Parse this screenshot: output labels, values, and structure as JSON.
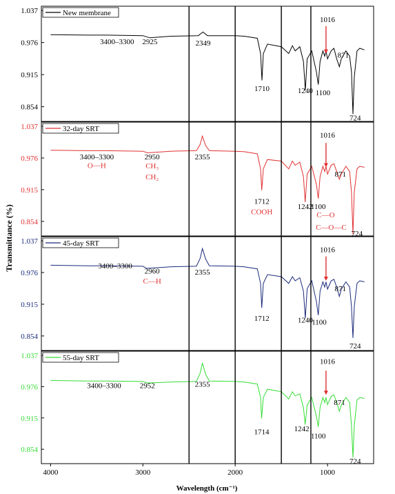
{
  "figure": {
    "ylabel": "Transmittance (%)",
    "xlabel": "Wavelength (cm⁻¹)",
    "xticks": [
      "4000",
      "3000",
      "2000",
      "1000"
    ]
  },
  "chart_data": [
    {
      "type": "line",
      "panel": 1,
      "color": "#000000",
      "series": [
        {
          "name": "New membrane",
          "x": [
            4000,
            3600,
            3400,
            3000,
            2925,
            2700,
            2400,
            2349,
            2300,
            2000,
            1900,
            1760,
            1725,
            1710,
            1695,
            1650,
            1500,
            1420,
            1380,
            1350,
            1300,
            1260,
            1240,
            1220,
            1170,
            1120,
            1100,
            1080,
            1050,
            1030,
            1016,
            1000,
            960,
            930,
            900,
            871,
            850,
            800,
            760,
            740,
            724,
            710,
            680,
            650,
            600
          ],
          "y": [
            0.991,
            0.99,
            0.99,
            0.989,
            0.985,
            0.988,
            0.989,
            0.996,
            0.989,
            0.989,
            0.988,
            0.984,
            0.955,
            0.904,
            0.955,
            0.973,
            0.968,
            0.955,
            0.97,
            0.96,
            0.968,
            0.94,
            0.885,
            0.945,
            0.96,
            0.92,
            0.896,
            0.94,
            0.96,
            0.95,
            0.96,
            0.945,
            0.96,
            0.965,
            0.945,
            0.93,
            0.945,
            0.96,
            0.95,
            0.92,
            0.84,
            0.91,
            0.96,
            0.965,
            0.962
          ]
        }
      ],
      "ylim": [
        0.826,
        1.045
      ],
      "yticks": [
        "1.037",
        "0.976",
        "0.915",
        "0.854"
      ],
      "tick_color": "#000000",
      "annotations": [
        {
          "text": "3400–3300",
          "x": 3280,
          "y": 0.973,
          "color": "#000000"
        },
        {
          "text": "2925",
          "x": 2925,
          "y": 0.973,
          "color": "#000000"
        },
        {
          "text": "2349",
          "x": 2349,
          "y": 0.97,
          "color": "#000000"
        },
        {
          "text": "1710",
          "x": 1710,
          "y": 0.884,
          "color": "#000000"
        },
        {
          "text": "1240",
          "x": 1240,
          "y": 0.88,
          "color": "#000000"
        },
        {
          "text": "1100",
          "x": 1050,
          "y": 0.876,
          "color": "#000000"
        },
        {
          "text": "1016",
          "x": 1000,
          "y": 1.015,
          "color": "#000000"
        },
        {
          "text": "871",
          "x": 830,
          "y": 0.947,
          "color": "#000000"
        },
        {
          "text": "724",
          "x": 700,
          "y": 0.828,
          "color": "#000000"
        }
      ],
      "arrow": {
        "x": 1016,
        "y_from": 1.007,
        "y_to": 0.955
      }
    },
    {
      "type": "line",
      "panel": 2,
      "color": "#e03030",
      "series": [
        {
          "name": "32-day SRT",
          "x": [
            4000,
            3600,
            3400,
            3000,
            2950,
            2700,
            2420,
            2380,
            2355,
            2320,
            2280,
            2000,
            1900,
            1760,
            1725,
            1712,
            1695,
            1650,
            1500,
            1420,
            1380,
            1350,
            1300,
            1260,
            1242,
            1220,
            1170,
            1120,
            1100,
            1080,
            1050,
            1030,
            1016,
            1000,
            960,
            930,
            900,
            871,
            850,
            800,
            760,
            740,
            724,
            710,
            680,
            650,
            600
          ],
          "y": [
            0.991,
            0.99,
            0.99,
            0.989,
            0.986,
            0.989,
            0.99,
            1.002,
            1.018,
            1.0,
            0.99,
            0.989,
            0.988,
            0.984,
            0.955,
            0.914,
            0.955,
            0.973,
            0.97,
            0.955,
            0.97,
            0.962,
            0.968,
            0.94,
            0.891,
            0.945,
            0.96,
            0.925,
            0.898,
            0.94,
            0.96,
            0.95,
            0.96,
            0.945,
            0.962,
            0.965,
            0.95,
            0.935,
            0.945,
            0.96,
            0.95,
            0.91,
            0.83,
            0.91,
            0.955,
            0.96,
            0.958
          ]
        }
      ],
      "ylim": [
        0.826,
        1.045
      ],
      "yticks": [
        "1.037",
        "0.976",
        "0.915",
        "0.854"
      ],
      "tick_color": "#e03030",
      "annotations": [
        {
          "text": "3400–3300",
          "x": 3500,
          "y": 0.973,
          "color": "#000000"
        },
        {
          "text": "O—H",
          "x": 3500,
          "y": 0.957,
          "color": "#e03030"
        },
        {
          "text": "2950",
          "x": 2900,
          "y": 0.973,
          "color": "#000000"
        },
        {
          "text": "CH₃",
          "x": 2900,
          "y": 0.956,
          "color": "#e03030"
        },
        {
          "text": "CH₂",
          "x": 2900,
          "y": 0.935,
          "color": "#e03030"
        },
        {
          "text": "2355",
          "x": 2355,
          "y": 0.973,
          "color": "#000000"
        },
        {
          "text": "1712",
          "x": 1712,
          "y": 0.888,
          "color": "#000000"
        },
        {
          "text": "COOH",
          "x": 1712,
          "y": 0.868,
          "color": "#e03030"
        },
        {
          "text": "1242",
          "x": 1242,
          "y": 0.878,
          "color": "#000000"
        },
        {
          "text": "1100",
          "x": 1100,
          "y": 0.878,
          "color": "#000000"
        },
        {
          "text": "C—O",
          "x": 1020,
          "y": 0.862,
          "color": "#e03030"
        },
        {
          "text": "C—O—C",
          "x": 960,
          "y": 0.838,
          "color": "#e03030"
        },
        {
          "text": "1016",
          "x": 1000,
          "y": 1.015,
          "color": "#000000"
        },
        {
          "text": "871",
          "x": 860,
          "y": 0.94,
          "color": "#000000"
        },
        {
          "text": "724",
          "x": 680,
          "y": 0.826,
          "color": "#000000"
        }
      ],
      "arrow": {
        "x": 1016,
        "y_from": 1.005,
        "y_to": 0.958
      }
    },
    {
      "type": "line",
      "panel": 3,
      "color": "#1a2a7a",
      "series": [
        {
          "name": "45-day SRT",
          "x": [
            4000,
            3600,
            3400,
            3000,
            2960,
            2700,
            2420,
            2380,
            2355,
            2320,
            2280,
            2000,
            1900,
            1760,
            1725,
            1712,
            1695,
            1650,
            1500,
            1420,
            1380,
            1350,
            1300,
            1260,
            1240,
            1220,
            1170,
            1120,
            1100,
            1080,
            1050,
            1030,
            1016,
            1000,
            960,
            930,
            900,
            871,
            850,
            800,
            760,
            740,
            724,
            710,
            680,
            650,
            600
          ],
          "y": [
            0.99,
            0.989,
            0.989,
            0.988,
            0.984,
            0.987,
            0.988,
            1.003,
            1.022,
            1.002,
            0.989,
            0.988,
            0.987,
            0.983,
            0.955,
            0.908,
            0.955,
            0.972,
            0.968,
            0.955,
            0.968,
            0.96,
            0.966,
            0.94,
            0.888,
            0.945,
            0.96,
            0.92,
            0.894,
            0.94,
            0.958,
            0.948,
            0.958,
            0.944,
            0.96,
            0.963,
            0.948,
            0.93,
            0.944,
            0.958,
            0.948,
            0.91,
            0.85,
            0.91,
            0.955,
            0.96,
            0.958
          ]
        }
      ],
      "ylim": [
        0.826,
        1.045
      ],
      "yticks": [
        "1.037",
        "0.976",
        "0.915",
        "0.854"
      ],
      "tick_color": "#1a2a7a",
      "annotations": [
        {
          "text": "3400–3300",
          "x": 3300,
          "y": 0.984,
          "color": "#000000"
        },
        {
          "text": "2960",
          "x": 2900,
          "y": 0.974,
          "color": "#000000"
        },
        {
          "text": "C—H",
          "x": 2900,
          "y": 0.955,
          "color": "#e03030"
        },
        {
          "text": "2355",
          "x": 2355,
          "y": 0.972,
          "color": "#000000"
        },
        {
          "text": "1712",
          "x": 1712,
          "y": 0.883,
          "color": "#000000"
        },
        {
          "text": "1240",
          "x": 1240,
          "y": 0.88,
          "color": "#000000"
        },
        {
          "text": "1100",
          "x": 1090,
          "y": 0.876,
          "color": "#000000"
        },
        {
          "text": "1016",
          "x": 1000,
          "y": 1.015,
          "color": "#000000"
        },
        {
          "text": "871",
          "x": 860,
          "y": 0.94,
          "color": "#000000"
        },
        {
          "text": "724",
          "x": 700,
          "y": 0.83,
          "color": "#000000"
        }
      ],
      "arrow": {
        "x": 1016,
        "y_from": 1.007,
        "y_to": 0.96
      }
    },
    {
      "type": "line",
      "panel": 4,
      "color": "#33dd33",
      "series": [
        {
          "name": "55-day SRT",
          "x": [
            4000,
            3600,
            3400,
            3000,
            2952,
            2700,
            2420,
            2380,
            2355,
            2320,
            2280,
            2000,
            1900,
            1760,
            1725,
            1714,
            1695,
            1650,
            1500,
            1420,
            1380,
            1350,
            1300,
            1260,
            1242,
            1220,
            1170,
            1120,
            1100,
            1080,
            1050,
            1030,
            1016,
            1000,
            960,
            930,
            900,
            871,
            850,
            800,
            760,
            740,
            724,
            710,
            680,
            650,
            600
          ],
          "y": [
            0.988,
            0.987,
            0.987,
            0.986,
            0.983,
            0.985,
            0.986,
            1.002,
            1.022,
            1.0,
            0.987,
            0.986,
            0.985,
            0.981,
            0.955,
            0.914,
            0.955,
            0.971,
            0.966,
            0.952,
            0.966,
            0.958,
            0.962,
            0.935,
            0.902,
            0.94,
            0.955,
            0.918,
            0.898,
            0.935,
            0.955,
            0.945,
            0.955,
            0.941,
            0.957,
            0.96,
            0.945,
            0.928,
            0.94,
            0.955,
            0.945,
            0.9,
            0.838,
            0.9,
            0.95,
            0.955,
            0.953
          ]
        }
      ],
      "ylim": [
        0.826,
        1.045
      ],
      "yticks": [
        "1.037",
        "0.976",
        "0.915",
        "0.854"
      ],
      "tick_color": "#33dd33",
      "annotations": [
        {
          "text": "3400–3300",
          "x": 3420,
          "y": 0.973,
          "color": "#000000"
        },
        {
          "text": "2952",
          "x": 2952,
          "y": 0.973,
          "color": "#000000"
        },
        {
          "text": "2355",
          "x": 2355,
          "y": 0.976,
          "color": "#000000"
        },
        {
          "text": "1714",
          "x": 1714,
          "y": 0.883,
          "color": "#000000"
        },
        {
          "text": "1242",
          "x": 1280,
          "y": 0.889,
          "color": "#000000"
        },
        {
          "text": "1100",
          "x": 1100,
          "y": 0.875,
          "color": "#000000"
        },
        {
          "text": "1016",
          "x": 1000,
          "y": 1.02,
          "color": "#000000"
        },
        {
          "text": "871",
          "x": 870,
          "y": 0.94,
          "color": "#000000"
        },
        {
          "text": "724",
          "x": 700,
          "y": 0.826,
          "color": "#000000"
        }
      ],
      "arrow": {
        "x": 1016,
        "y_from": 1.007,
        "y_to": 0.96
      }
    }
  ],
  "reference_lines_x": [
    2500,
    2000,
    1500,
    1180
  ]
}
